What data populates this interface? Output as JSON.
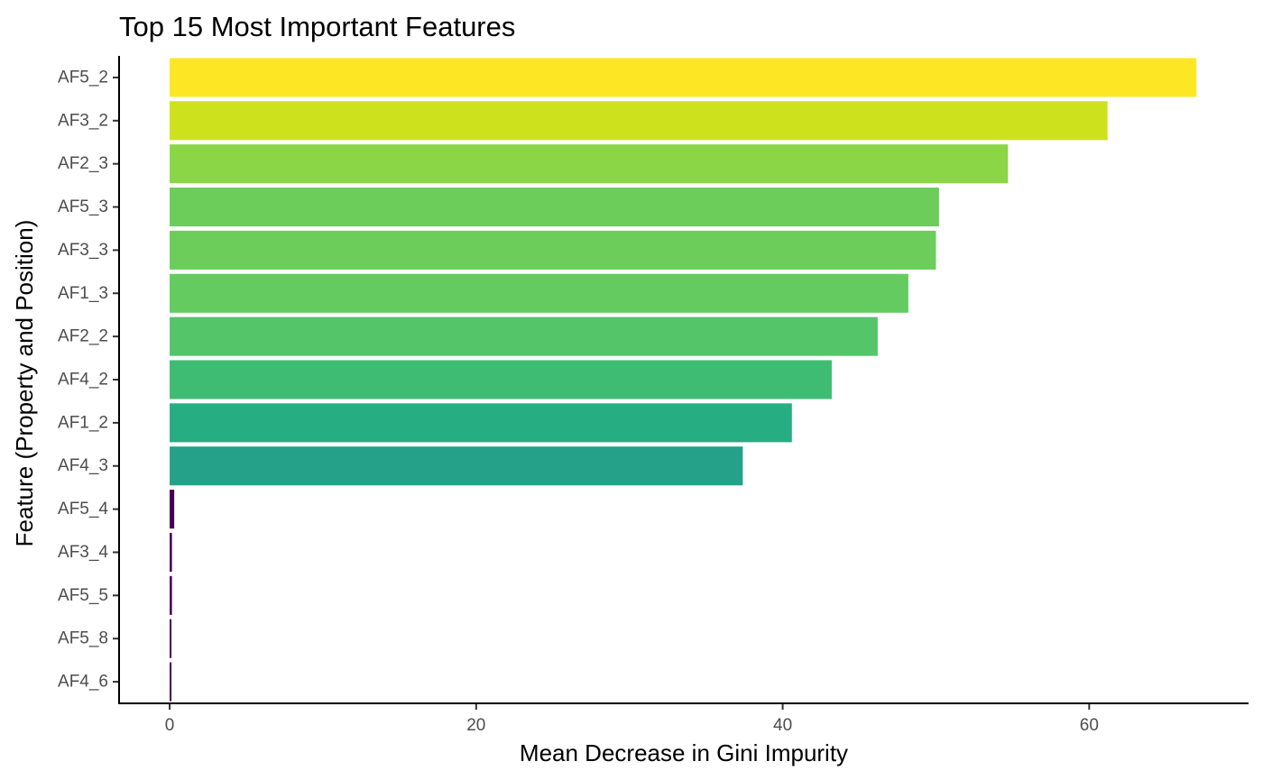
{
  "chart_data": {
    "type": "bar",
    "orientation": "horizontal",
    "title": "Top 15 Most Important Features",
    "xlabel": "Mean Decrease in Gini Impurity",
    "ylabel": "Feature (Property and Position)",
    "categories": [
      "AF5_2",
      "AF3_2",
      "AF2_3",
      "AF5_3",
      "AF3_3",
      "AF1_3",
      "AF2_2",
      "AF4_2",
      "AF1_2",
      "AF4_3",
      "AF5_4",
      "AF3_4",
      "AF5_5",
      "AF5_8",
      "AF4_6"
    ],
    "values": [
      67.0,
      61.2,
      54.7,
      50.2,
      50.0,
      48.2,
      46.2,
      43.2,
      40.6,
      37.4,
      0.3,
      0.15,
      0.15,
      0.1,
      0.08
    ],
    "colors": [
      "#fde725",
      "#cde11d",
      "#8bd646",
      "#6ccd5a",
      "#6ccd5a",
      "#63cb5f",
      "#54c568",
      "#3fbc73",
      "#26ad81",
      "#25a18a",
      "#440154",
      "#440154",
      "#440154",
      "#440154",
      "#440154"
    ],
    "xlim": [
      -3.3,
      70.4
    ],
    "xticks": [
      0,
      20,
      40,
      60
    ],
    "grid": false,
    "legend": "none"
  }
}
